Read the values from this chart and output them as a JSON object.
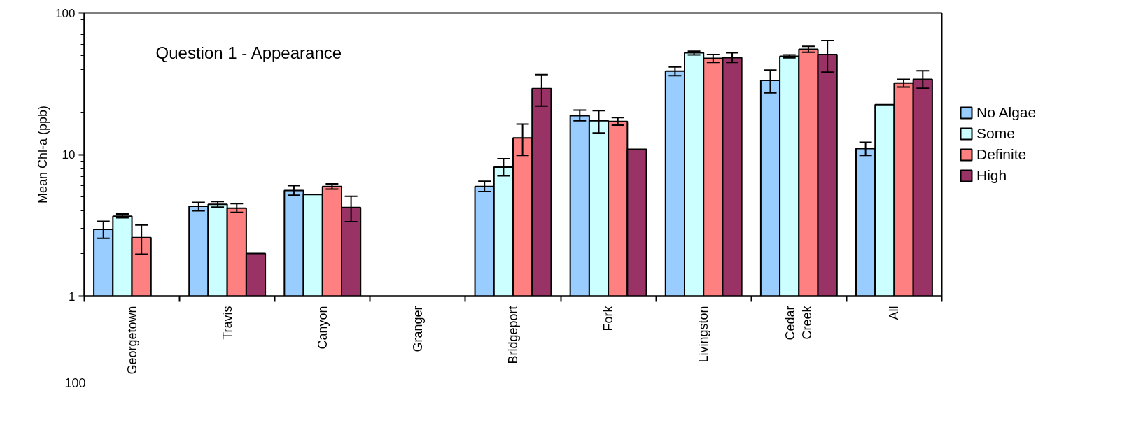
{
  "chart_data": {
    "type": "bar",
    "title": "Question 1 - Appearance",
    "ylabel": "Mean Chl-a (ppb)",
    "categories": [
      "Georgetown",
      "Travis",
      "Canyon",
      "Granger",
      "Bridgeport",
      "Fork",
      "Livingston",
      "Cedar\nCreek",
      "All"
    ],
    "series": [
      {
        "name": "No Algae",
        "color": "#99ccff",
        "values": [
          2.96,
          4.31,
          5.57,
          null,
          5.95,
          18.8,
          38.8,
          33.4,
          11.0
        ],
        "errors": [
          [
            2.56,
            3.38
          ],
          [
            4.0,
            4.59
          ],
          [
            5.15,
            6.03
          ],
          null,
          [
            5.48,
            6.47
          ],
          [
            17.3,
            20.6
          ],
          [
            36.0,
            41.6
          ],
          [
            27.3,
            39.5
          ],
          [
            9.86,
            12.2
          ]
        ]
      },
      {
        "name": "Some",
        "color": "#ccffff",
        "values": [
          3.67,
          4.45,
          5.21,
          null,
          8.16,
          17.3,
          52.3,
          49.4,
          22.5
        ],
        "errors": [
          [
            3.57,
            3.8
          ],
          [
            4.25,
            4.65
          ],
          null,
          null,
          [
            7.06,
            9.35
          ],
          [
            14.2,
            20.4
          ],
          [
            50.5,
            53.7
          ],
          [
            48.2,
            50.6
          ],
          null
        ]
      },
      {
        "name": "Definite",
        "color": "#ff8080",
        "values": [
          2.59,
          4.18,
          5.94,
          null,
          13.1,
          17.1,
          47.7,
          55.4,
          32.0
        ],
        "errors": [
          [
            1.98,
            3.18
          ],
          [
            3.9,
            4.5
          ],
          [
            5.7,
            6.2
          ],
          null,
          [
            9.85,
            16.4
          ],
          [
            16.1,
            18.2
          ],
          [
            44.7,
            50.9
          ],
          [
            52.7,
            58.1
          ],
          [
            30.0,
            34.0
          ]
        ]
      },
      {
        "name": "High",
        "color": "#993366",
        "values": [
          null,
          2.0,
          4.22,
          null,
          29.2,
          10.9,
          48.3,
          50.9,
          34.0
        ],
        "errors": [
          null,
          null,
          [
            3.36,
            5.07
          ],
          null,
          [
            22.0,
            36.7
          ],
          null,
          [
            44.7,
            52.3
          ],
          [
            38.1,
            63.9
          ],
          [
            29.4,
            39.0
          ]
        ]
      }
    ],
    "log": "y",
    "ylim": [
      1,
      100
    ],
    "yticks": [
      1,
      10,
      100
    ],
    "grid": "y",
    "legend": "right",
    "annotations": [
      "100"
    ]
  }
}
